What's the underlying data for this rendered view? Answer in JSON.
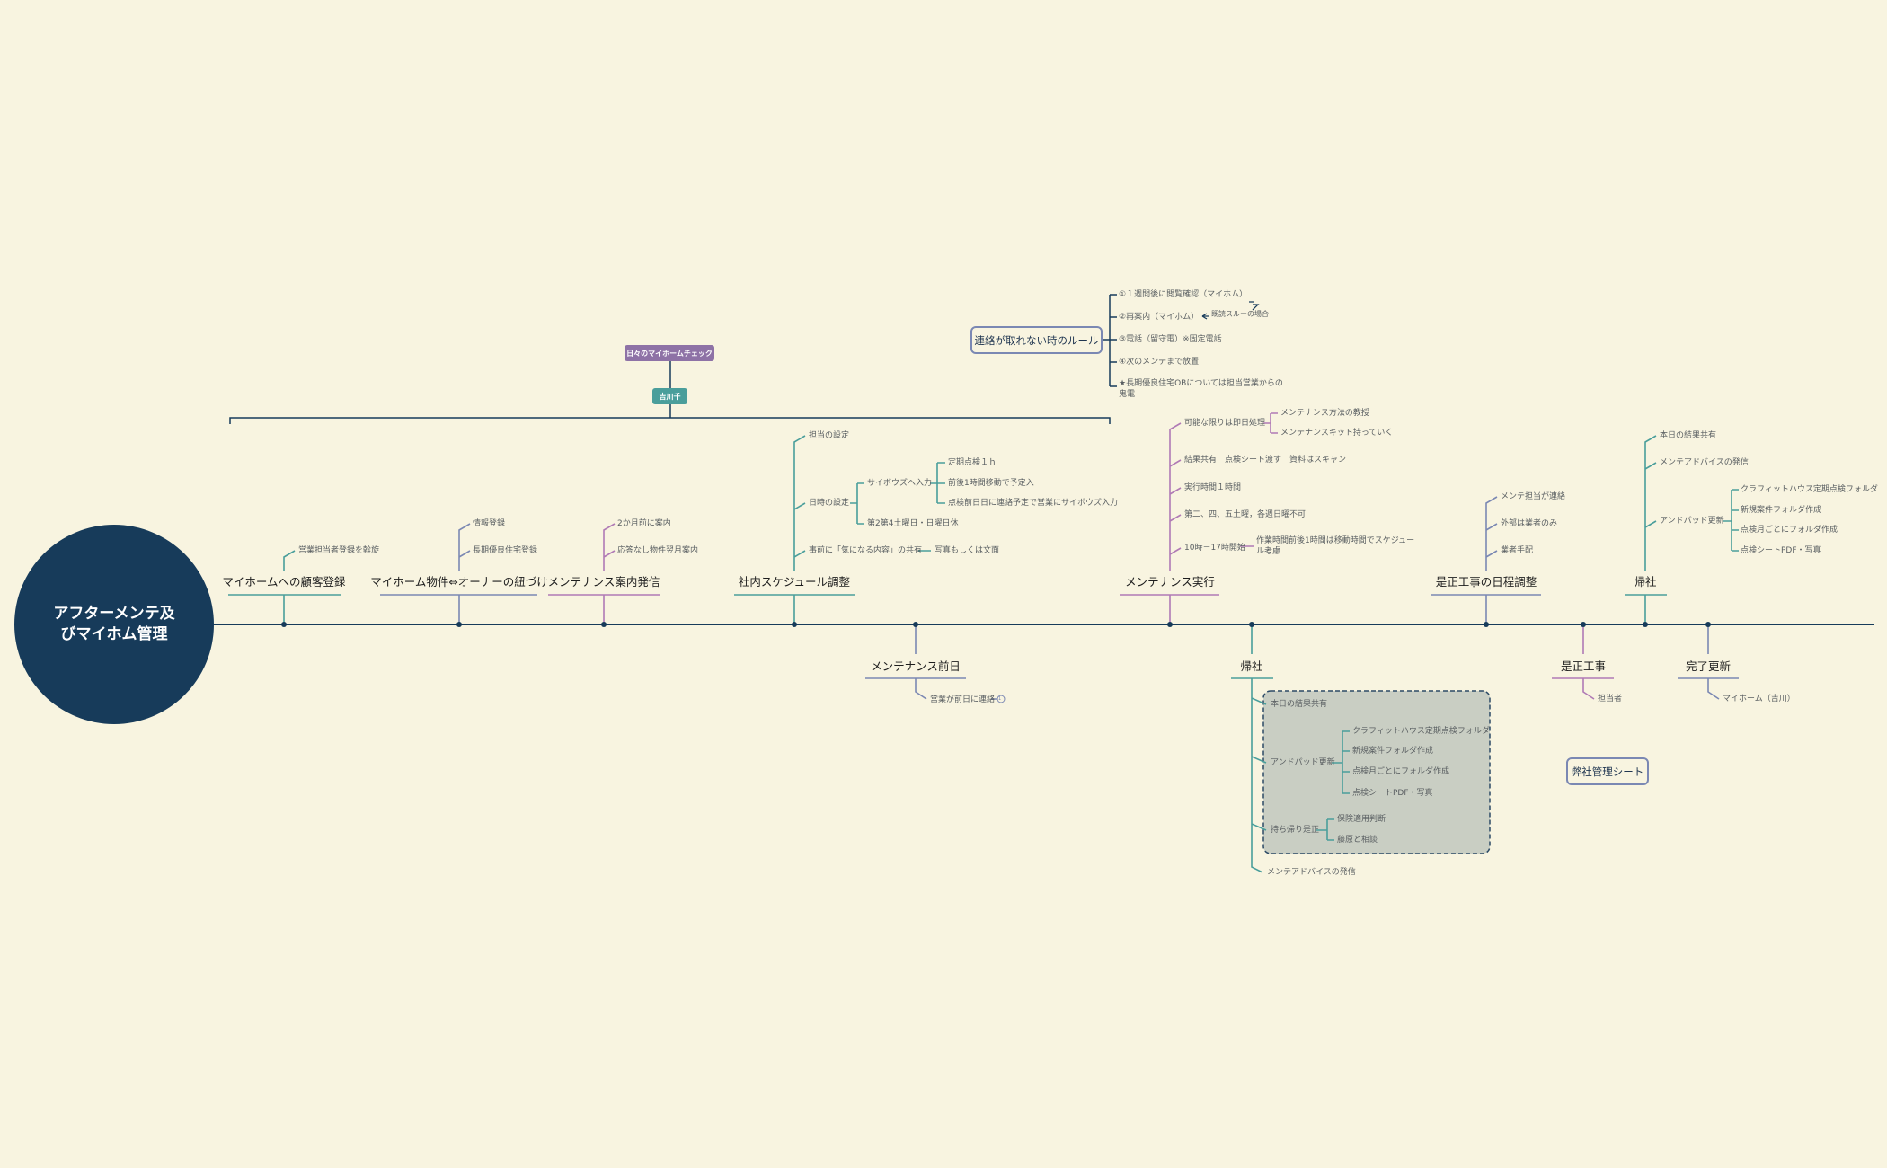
{
  "central_topic": {
    "line1": "アフターメンテ及",
    "line2": "びマイホム管理"
  },
  "colors": {
    "background": "#f8f4e0",
    "navy": "#173b5a",
    "teal": "#4a9e9b",
    "slate": "#7b88b3",
    "purple": "#b07ab5",
    "group_fill": "#c9cec3"
  },
  "floating": {
    "daily_check": "日々のマイホームチェック",
    "owner": "吉川千",
    "company_sheet": "弊社管理シート",
    "contact_rule": {
      "title": "連絡が取れない時のルール",
      "items": [
        "①１週間後に閲覧確認（マイホム）",
        "②再案内（マイホム）",
        "③電話（留守電）※固定電話",
        "④次のメンテまで放置",
        "★長期優良住宅OBについては担当営業からの鬼電"
      ],
      "annotation": "既読スルーの場合"
    }
  },
  "topics": [
    {
      "label": "マイホームへの顧客登録",
      "children": [
        "営業担当者登録を斡旋"
      ]
    },
    {
      "label": "マイホーム物件⇔オーナーの紐づけ",
      "children": [
        "情報登録",
        "長期優良住宅登録"
      ]
    },
    {
      "label": "メンテナンス案内発信",
      "children": [
        "2か月前に案内",
        "応答なし物件翌月案内"
      ]
    },
    {
      "label": "社内スケジュール調整",
      "children": [
        "担当の設定",
        "日時の設定",
        "事前に「気になる内容」の共有"
      ],
      "datetime": {
        "input": "サイボウズへ入力",
        "input_children": [
          "定期点検１ｈ",
          "前後1時間移動で予定入",
          "点検前日日に連絡予定で営業にサイボウズ入力"
        ],
        "holiday": "第2第4土曜日・日曜日休"
      },
      "share_child": "写真もしくは文面"
    },
    {
      "label": "メンテナンス前日",
      "children": [
        "営業が前日に連絡"
      ],
      "marker": "1"
    },
    {
      "label": "メンテナンス実行",
      "children": [
        "可能な限りは即日処理",
        "結果共有　点検シート渡す　資料はスキャン",
        "実行時間１時間",
        "第二、四、五土曜，各週日曜不可",
        "10時－17時開始"
      ],
      "same_day_children": [
        "メンテナンス方法の教授",
        "メンテナンスキット持っていく"
      ],
      "time_note": "作業時間前後1時間は移動時間でスケジュール考慮"
    },
    {
      "label": "帰社",
      "children": [
        "本日の結果共有",
        "アンドパッド更新",
        "持ち帰り是正",
        "メンテアドバイスの発信"
      ],
      "andpad_children": [
        "クラフィットハウス定期点検フォルダ",
        "新規案件フォルダ作成",
        "点検月ごとにフォルダ作成",
        "点検シートPDF・写真"
      ],
      "fix_children": [
        "保険適用判断",
        "藤原と相談"
      ]
    },
    {
      "label": "是正工事の日程調整",
      "children": [
        "メンテ担当が連絡",
        "外部は業者のみ",
        "業者手配"
      ]
    },
    {
      "label": "是正工事",
      "children": [
        "担当者"
      ]
    },
    {
      "label": "帰社",
      "children": [
        "本日の結果共有",
        "メンテアドバイスの発信",
        "アンドパッド更新"
      ],
      "andpad_children": [
        "クラフィットハウス定期点検フォルダ",
        "新規案件フォルダ作成",
        "点検月ごとにフォルダ作成",
        "点検シートPDF・写真"
      ]
    },
    {
      "label": "完了更新",
      "children": [
        "マイホーム（吉川）"
      ]
    }
  ]
}
